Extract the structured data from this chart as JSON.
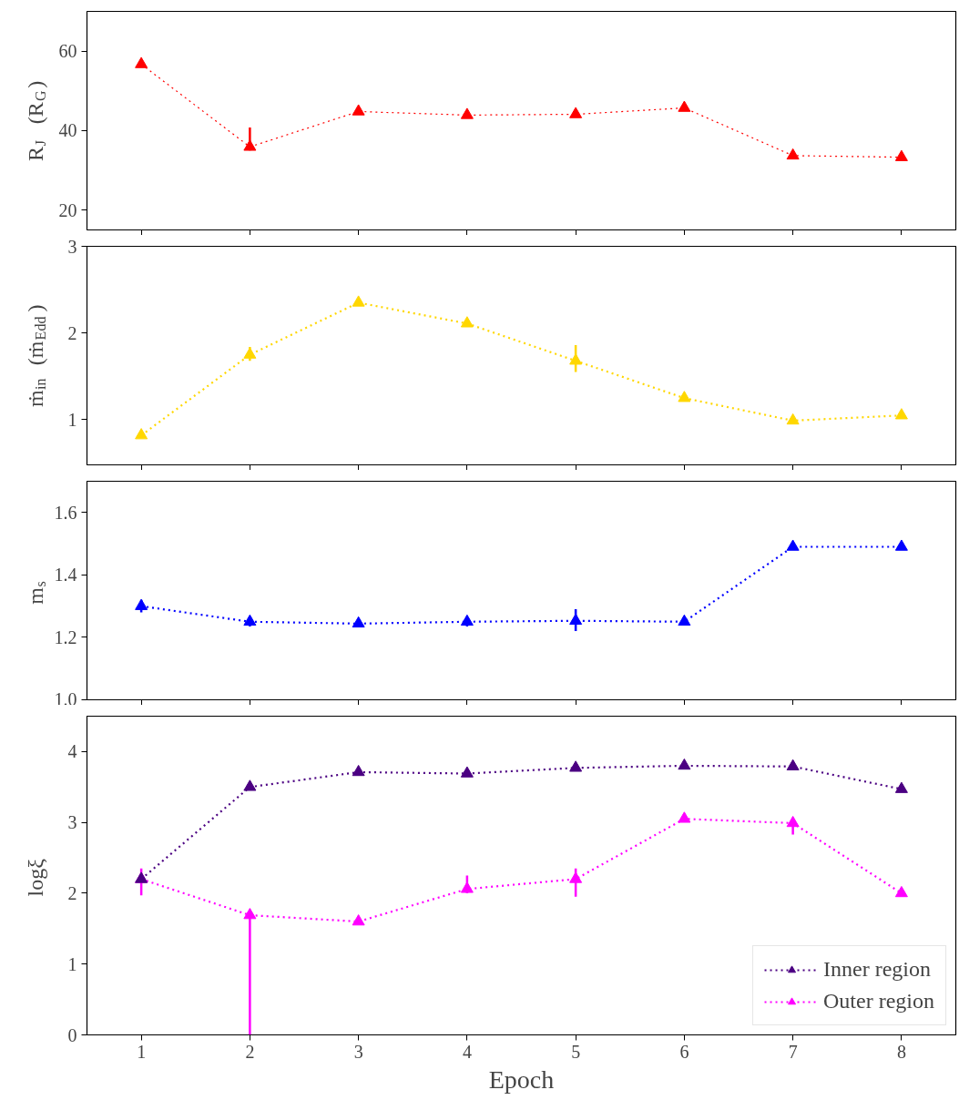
{
  "chart_data": [
    {
      "type": "line",
      "x": [
        1,
        2,
        3,
        4,
        5,
        6,
        7,
        8
      ],
      "xlim": [
        0.5,
        8.5
      ],
      "xticks": [
        1,
        2,
        3,
        4,
        5,
        6,
        7,
        8
      ],
      "ylim": [
        15,
        70
      ],
      "yticks": [
        20,
        40,
        60
      ],
      "ylabel": "R$_{J}$ (R$_{G}$)",
      "tick_labels": "y",
      "marker": "triangle",
      "line_style": "dotted",
      "grid": false,
      "series": [
        {
          "color": "#ff0000",
          "values": [
            56.7,
            35.9,
            44.8,
            43.9,
            44.1,
            45.7,
            33.7,
            33.3
          ],
          "errors": [
            null,
            [
              35.0,
              40.8
            ],
            null,
            null,
            null,
            null,
            null,
            null
          ]
        }
      ]
    },
    {
      "type": "line",
      "x": [
        1,
        2,
        3,
        4,
        5,
        6,
        7,
        8
      ],
      "xlim": [
        0.5,
        8.5
      ],
      "xticks": [
        1,
        2,
        3,
        4,
        5,
        6,
        7,
        8
      ],
      "ylim": [
        0.48,
        3
      ],
      "yticks": [
        1,
        2,
        3
      ],
      "ylabel": "ṁ$_{in}$ (ṁ$_{Edd}$)",
      "tick_labels": "y",
      "marker": "triangle",
      "line_style": "dotted",
      "grid": false,
      "series": [
        {
          "color": "#ffd700",
          "values": [
            0.82,
            1.75,
            2.35,
            2.11,
            1.68,
            1.25,
            0.99,
            1.05
          ],
          "errors": [
            null,
            [
              1.68,
              1.84
            ],
            null,
            null,
            [
              1.55,
              1.86
            ],
            null,
            null,
            null
          ]
        }
      ]
    },
    {
      "type": "line",
      "x": [
        1,
        2,
        3,
        4,
        5,
        6,
        7,
        8
      ],
      "xlim": [
        0.5,
        8.5
      ],
      "xticks": [
        1,
        2,
        3,
        4,
        5,
        6,
        7,
        8
      ],
      "ylim": [
        1.0,
        1.7
      ],
      "yticks": [
        {
          "value": 1.0,
          "label": "1.0"
        },
        1.2,
        1.4,
        1.6
      ],
      "ylabel": "m$_{s}$",
      "tick_labels": "y",
      "marker": "triangle",
      "line_style": "dotted",
      "grid": false,
      "series": [
        {
          "color": "#0000ff",
          "values": [
            1.3,
            1.25,
            1.244,
            1.25,
            1.253,
            1.25,
            1.49,
            1.49
          ],
          "errors": [
            0.02,
            0.015,
            null,
            0.015,
            [
              1.22,
              1.29
            ],
            null,
            null,
            null
          ]
        }
      ]
    },
    {
      "type": "line",
      "x": [
        1,
        2,
        3,
        4,
        5,
        6,
        7,
        8
      ],
      "xlim": [
        0.5,
        8.5
      ],
      "xticks": [
        1,
        2,
        3,
        4,
        5,
        6,
        7,
        8
      ],
      "ylim": [
        0,
        4.5
      ],
      "yticks": [
        0,
        1,
        2,
        3,
        4
      ],
      "xlabel": "Epoch",
      "ylabel": "logξ",
      "marker": "triangle",
      "line_style": "dotted",
      "grid": false,
      "legend": "bottom right",
      "series": [
        {
          "name": "Inner region",
          "color": "#4b0082",
          "values": [
            2.2,
            3.5,
            3.71,
            3.69,
            3.77,
            3.8,
            3.79,
            3.47
          ]
        },
        {
          "name": "Outer region",
          "color": "#ff00ff",
          "values": [
            2.2,
            1.69,
            1.6,
            2.06,
            2.2,
            3.05,
            2.99,
            2.0
          ],
          "errors": [
            [
              1.97,
              2.35
            ],
            [
              0,
              1.69
            ],
            null,
            [
              2.0,
              2.25
            ],
            [
              1.95,
              2.35
            ],
            null,
            [
              2.83,
              3.0
            ],
            null
          ]
        }
      ]
    }
  ]
}
